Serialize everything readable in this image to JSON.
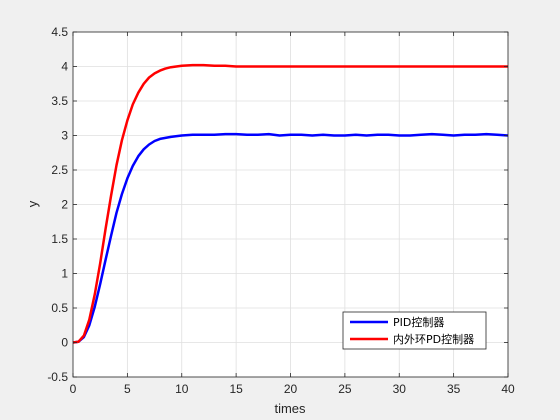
{
  "chart_data": {
    "type": "line",
    "title": "",
    "xlabel": "times",
    "ylabel": "y",
    "xlim": [
      0,
      40
    ],
    "ylim": [
      -0.5,
      4.5
    ],
    "xticks": [
      0,
      5,
      10,
      15,
      20,
      25,
      30,
      35,
      40
    ],
    "yticks": [
      -0.5,
      0,
      0.5,
      1,
      1.5,
      2,
      2.5,
      3,
      3.5,
      4,
      4.5
    ],
    "xtick_labels": [
      "0",
      "5",
      "10",
      "15",
      "20",
      "25",
      "30",
      "35",
      "40"
    ],
    "ytick_labels": [
      "-0.5",
      "0",
      "0.5",
      "1",
      "1.5",
      "2",
      "2.5",
      "3",
      "3.5",
      "4",
      "4.5"
    ],
    "grid": true,
    "legend_position": "bottom-right",
    "series": [
      {
        "name": "PID控制器",
        "color": "#0000ff",
        "x": [
          0,
          0.5,
          1,
          1.5,
          2,
          2.5,
          3,
          3.5,
          4,
          4.5,
          5,
          5.5,
          6,
          6.5,
          7,
          7.5,
          8,
          9,
          10,
          11,
          12,
          13,
          14,
          15,
          16,
          17,
          18,
          19,
          20,
          21,
          22,
          23,
          24,
          25,
          26,
          27,
          28,
          29,
          30,
          31,
          32,
          33,
          34,
          35,
          36,
          37,
          38,
          39,
          40
        ],
        "values": [
          0,
          0.01,
          0.08,
          0.25,
          0.52,
          0.85,
          1.2,
          1.55,
          1.88,
          2.15,
          2.38,
          2.56,
          2.7,
          2.8,
          2.87,
          2.92,
          2.95,
          2.98,
          3.0,
          3.01,
          3.01,
          3.01,
          3.02,
          3.02,
          3.01,
          3.01,
          3.02,
          3.0,
          3.01,
          3.01,
          3.0,
          3.01,
          3.0,
          3.0,
          3.01,
          3.0,
          3.01,
          3.01,
          3.0,
          3.0,
          3.01,
          3.02,
          3.01,
          3.0,
          3.01,
          3.01,
          3.02,
          3.01,
          3.0
        ]
      },
      {
        "name": "内外环PD控制器",
        "color": "#ff0000",
        "x": [
          0,
          0.5,
          1,
          1.5,
          2,
          2.5,
          3,
          3.5,
          4,
          4.5,
          5,
          5.5,
          6,
          6.5,
          7,
          7.5,
          8,
          8.5,
          9,
          9.5,
          10,
          11,
          12,
          13,
          14,
          15,
          16,
          17,
          18,
          20,
          22,
          24,
          26,
          28,
          30,
          32,
          34,
          36,
          38,
          40
        ],
        "values": [
          0,
          0.01,
          0.1,
          0.33,
          0.7,
          1.15,
          1.65,
          2.13,
          2.57,
          2.93,
          3.22,
          3.45,
          3.62,
          3.75,
          3.84,
          3.9,
          3.94,
          3.97,
          3.99,
          4.0,
          4.01,
          4.02,
          4.02,
          4.01,
          4.01,
          4.0,
          4.0,
          4.0,
          4.0,
          4.0,
          4.0,
          4.0,
          4.0,
          4.0,
          4.0,
          4.0,
          4.0,
          4.0,
          4.0,
          4.0
        ]
      }
    ]
  }
}
